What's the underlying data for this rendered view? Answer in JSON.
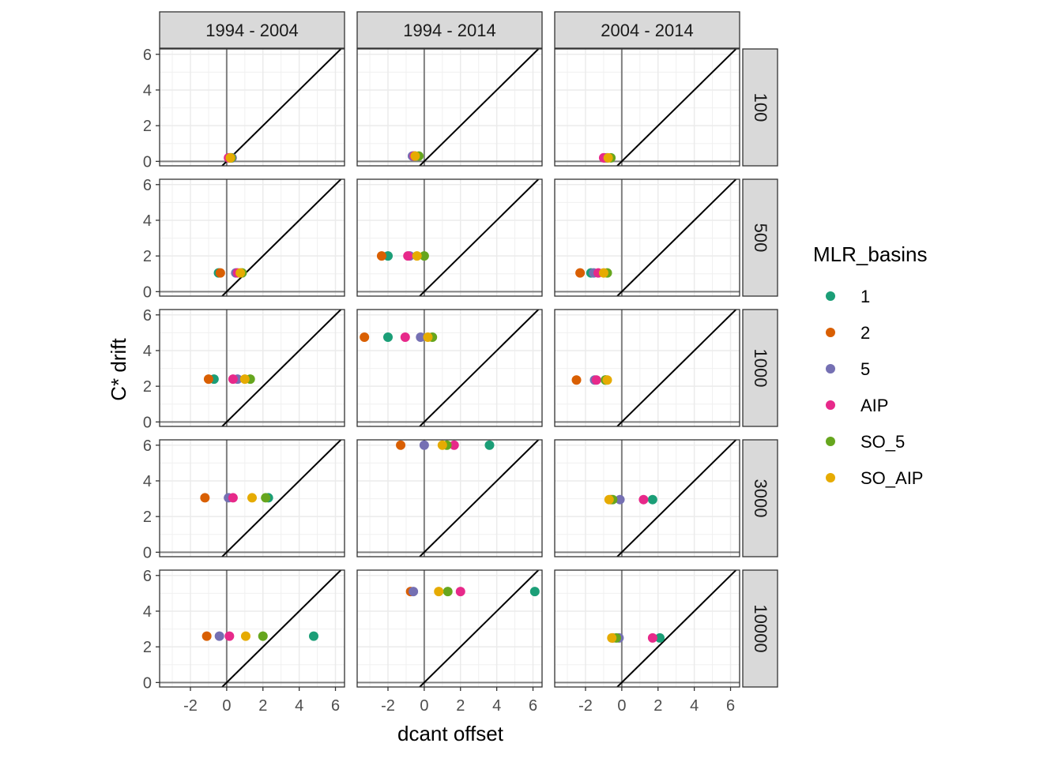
{
  "chart_data": {
    "type": "scatter",
    "xlabel": "dcant offset",
    "ylabel": "C* drift",
    "xlim": [
      -3.7,
      6.5
    ],
    "ylim": [
      -0.25,
      6.3
    ],
    "x_ticks": [
      -2,
      0,
      2,
      4,
      6
    ],
    "y_ticks": [
      0,
      2,
      4,
      6
    ],
    "x_tick_labels": [
      "-2",
      "0",
      "2",
      "4",
      "6"
    ],
    "y_tick_labels": [
      "0",
      "2",
      "4",
      "6"
    ],
    "col_facets": [
      "1994 - 2004",
      "1994 - 2014",
      "2004 - 2014"
    ],
    "row_facets": [
      "100",
      "500",
      "1000",
      "3000",
      "10000"
    ],
    "reference_lines": [
      "x = 0",
      "y = 0",
      "y = x"
    ],
    "grid": true,
    "legend": {
      "title": "MLR_basins",
      "position": "right",
      "entries": [
        {
          "label": "1",
          "color": "#1B9E77"
        },
        {
          "label": "2",
          "color": "#D95F02"
        },
        {
          "label": "5",
          "color": "#7570B3"
        },
        {
          "label": "AIP",
          "color": "#E7298A"
        },
        {
          "label": "SO_5",
          "color": "#66A61E"
        },
        {
          "label": "SO_AIP",
          "color": "#E6AB02"
        }
      ]
    },
    "series": [
      {
        "name": "1",
        "color": "#1B9E77",
        "points": [
          {
            "row": "100",
            "col": "1994 - 2004",
            "x": 0.2,
            "y": 0.2
          },
          {
            "row": "100",
            "col": "1994 - 2014",
            "x": -0.5,
            "y": 0.3
          },
          {
            "row": "100",
            "col": "2004 - 2014",
            "x": -0.8,
            "y": 0.2
          },
          {
            "row": "500",
            "col": "1994 - 2004",
            "x": -0.45,
            "y": 1.05
          },
          {
            "row": "500",
            "col": "1994 - 2014",
            "x": -2.0,
            "y": 2.0
          },
          {
            "row": "500",
            "col": "2004 - 2014",
            "x": -1.7,
            "y": 1.05
          },
          {
            "row": "1000",
            "col": "1994 - 2004",
            "x": -0.7,
            "y": 2.4
          },
          {
            "row": "1000",
            "col": "1994 - 2014",
            "x": -2.0,
            "y": 4.75
          },
          {
            "row": "1000",
            "col": "2004 - 2014",
            "x": -0.9,
            "y": 2.35
          },
          {
            "row": "3000",
            "col": "1994 - 2004",
            "x": 2.3,
            "y": 3.05
          },
          {
            "row": "3000",
            "col": "1994 - 2014",
            "x": 3.6,
            "y": 6.0
          },
          {
            "row": "3000",
            "col": "2004 - 2014",
            "x": 1.7,
            "y": 2.95
          },
          {
            "row": "10000",
            "col": "1994 - 2004",
            "x": 4.8,
            "y": 2.6
          },
          {
            "row": "10000",
            "col": "1994 - 2014",
            "x": 6.1,
            "y": 5.1
          },
          {
            "row": "10000",
            "col": "2004 - 2014",
            "x": 2.1,
            "y": 2.5
          }
        ]
      },
      {
        "name": "2",
        "color": "#D95F02",
        "points": [
          {
            "row": "100",
            "col": "1994 - 2004",
            "x": 0.15,
            "y": 0.2
          },
          {
            "row": "100",
            "col": "1994 - 2014",
            "x": -0.6,
            "y": 0.3
          },
          {
            "row": "100",
            "col": "2004 - 2014",
            "x": -0.95,
            "y": 0.2
          },
          {
            "row": "500",
            "col": "1994 - 2004",
            "x": -0.35,
            "y": 1.05
          },
          {
            "row": "500",
            "col": "1994 - 2014",
            "x": -2.35,
            "y": 2.0
          },
          {
            "row": "500",
            "col": "2004 - 2014",
            "x": -2.3,
            "y": 1.05
          },
          {
            "row": "1000",
            "col": "1994 - 2004",
            "x": -1.0,
            "y": 2.4
          },
          {
            "row": "1000",
            "col": "1994 - 2014",
            "x": -3.3,
            "y": 4.75
          },
          {
            "row": "1000",
            "col": "2004 - 2014",
            "x": -2.5,
            "y": 2.35
          },
          {
            "row": "3000",
            "col": "1994 - 2004",
            "x": -1.2,
            "y": 3.05
          },
          {
            "row": "3000",
            "col": "1994 - 2014",
            "x": -1.3,
            "y": 6.0
          },
          {
            "row": "3000",
            "col": "2004 - 2014",
            "x": -0.6,
            "y": 2.95
          },
          {
            "row": "10000",
            "col": "1994 - 2004",
            "x": -1.1,
            "y": 2.6
          },
          {
            "row": "10000",
            "col": "1994 - 2014",
            "x": -0.75,
            "y": 5.1
          },
          {
            "row": "10000",
            "col": "2004 - 2014",
            "x": -0.5,
            "y": 2.5
          }
        ]
      },
      {
        "name": "5",
        "color": "#7570B3",
        "points": [
          {
            "row": "100",
            "col": "1994 - 2004",
            "x": 0.3,
            "y": 0.2
          },
          {
            "row": "100",
            "col": "1994 - 2014",
            "x": -0.65,
            "y": 0.3
          },
          {
            "row": "100",
            "col": "2004 - 2014",
            "x": -0.85,
            "y": 0.2
          },
          {
            "row": "500",
            "col": "1994 - 2004",
            "x": 0.5,
            "y": 1.05
          },
          {
            "row": "500",
            "col": "1994 - 2014",
            "x": -0.8,
            "y": 2.0
          },
          {
            "row": "500",
            "col": "2004 - 2014",
            "x": -1.55,
            "y": 1.05
          },
          {
            "row": "1000",
            "col": "1994 - 2004",
            "x": 0.6,
            "y": 2.4
          },
          {
            "row": "1000",
            "col": "1994 - 2014",
            "x": -0.2,
            "y": 4.75
          },
          {
            "row": "1000",
            "col": "2004 - 2014",
            "x": -1.5,
            "y": 2.35
          },
          {
            "row": "3000",
            "col": "1994 - 2004",
            "x": 0.1,
            "y": 3.05
          },
          {
            "row": "3000",
            "col": "1994 - 2014",
            "x": 0.0,
            "y": 6.0
          },
          {
            "row": "3000",
            "col": "2004 - 2014",
            "x": -0.1,
            "y": 2.95
          },
          {
            "row": "10000",
            "col": "1994 - 2004",
            "x": -0.4,
            "y": 2.6
          },
          {
            "row": "10000",
            "col": "1994 - 2014",
            "x": -0.6,
            "y": 5.1
          },
          {
            "row": "10000",
            "col": "2004 - 2014",
            "x": -0.15,
            "y": 2.5
          }
        ]
      },
      {
        "name": "AIP",
        "color": "#E7298A",
        "points": [
          {
            "row": "100",
            "col": "1994 - 2004",
            "x": 0.1,
            "y": 0.2
          },
          {
            "row": "100",
            "col": "1994 - 2014",
            "x": -0.55,
            "y": 0.3
          },
          {
            "row": "100",
            "col": "2004 - 2014",
            "x": -1.0,
            "y": 0.2
          },
          {
            "row": "500",
            "col": "1994 - 2004",
            "x": 0.6,
            "y": 1.05
          },
          {
            "row": "500",
            "col": "1994 - 2014",
            "x": -0.9,
            "y": 2.0
          },
          {
            "row": "500",
            "col": "2004 - 2014",
            "x": -1.3,
            "y": 1.05
          },
          {
            "row": "1000",
            "col": "1994 - 2004",
            "x": 0.35,
            "y": 2.4
          },
          {
            "row": "1000",
            "col": "1994 - 2014",
            "x": -1.05,
            "y": 4.75
          },
          {
            "row": "1000",
            "col": "2004 - 2014",
            "x": -1.4,
            "y": 2.35
          },
          {
            "row": "3000",
            "col": "1994 - 2004",
            "x": 0.35,
            "y": 3.05
          },
          {
            "row": "3000",
            "col": "1994 - 2014",
            "x": 1.65,
            "y": 6.0
          },
          {
            "row": "3000",
            "col": "2004 - 2014",
            "x": 1.2,
            "y": 2.95
          },
          {
            "row": "10000",
            "col": "1994 - 2004",
            "x": 0.15,
            "y": 2.6
          },
          {
            "row": "10000",
            "col": "1994 - 2014",
            "x": 2.0,
            "y": 5.1
          },
          {
            "row": "10000",
            "col": "2004 - 2014",
            "x": 1.7,
            "y": 2.5
          }
        ]
      },
      {
        "name": "SO_5",
        "color": "#66A61E",
        "points": [
          {
            "row": "100",
            "col": "1994 - 2004",
            "x": 0.25,
            "y": 0.2
          },
          {
            "row": "100",
            "col": "1994 - 2014",
            "x": -0.3,
            "y": 0.3
          },
          {
            "row": "100",
            "col": "2004 - 2014",
            "x": -0.6,
            "y": 0.2
          },
          {
            "row": "500",
            "col": "1994 - 2004",
            "x": 0.85,
            "y": 1.05
          },
          {
            "row": "500",
            "col": "1994 - 2014",
            "x": 0.0,
            "y": 2.0
          },
          {
            "row": "500",
            "col": "2004 - 2014",
            "x": -0.8,
            "y": 1.05
          },
          {
            "row": "1000",
            "col": "1994 - 2004",
            "x": 1.3,
            "y": 2.4
          },
          {
            "row": "1000",
            "col": "1994 - 2014",
            "x": 0.45,
            "y": 4.75
          },
          {
            "row": "1000",
            "col": "2004 - 2014",
            "x": -0.9,
            "y": 2.35
          },
          {
            "row": "3000",
            "col": "1994 - 2004",
            "x": 2.15,
            "y": 3.05
          },
          {
            "row": "3000",
            "col": "1994 - 2014",
            "x": 1.25,
            "y": 6.0
          },
          {
            "row": "3000",
            "col": "2004 - 2014",
            "x": -0.5,
            "y": 2.95
          },
          {
            "row": "10000",
            "col": "1994 - 2004",
            "x": 2.0,
            "y": 2.6
          },
          {
            "row": "10000",
            "col": "1994 - 2014",
            "x": 1.3,
            "y": 5.1
          },
          {
            "row": "10000",
            "col": "2004 - 2014",
            "x": -0.3,
            "y": 2.5
          }
        ]
      },
      {
        "name": "SO_AIP",
        "color": "#E6AB02",
        "points": [
          {
            "row": "100",
            "col": "1994 - 2004",
            "x": 0.2,
            "y": 0.2
          },
          {
            "row": "100",
            "col": "1994 - 2014",
            "x": -0.5,
            "y": 0.3
          },
          {
            "row": "100",
            "col": "2004 - 2014",
            "x": -0.75,
            "y": 0.2
          },
          {
            "row": "500",
            "col": "1994 - 2004",
            "x": 0.75,
            "y": 1.05
          },
          {
            "row": "500",
            "col": "1994 - 2014",
            "x": -0.4,
            "y": 2.0
          },
          {
            "row": "500",
            "col": "2004 - 2014",
            "x": -1.0,
            "y": 1.05
          },
          {
            "row": "1000",
            "col": "1994 - 2004",
            "x": 1.0,
            "y": 2.4
          },
          {
            "row": "1000",
            "col": "1994 - 2014",
            "x": 0.2,
            "y": 4.75
          },
          {
            "row": "1000",
            "col": "2004 - 2014",
            "x": -0.8,
            "y": 2.35
          },
          {
            "row": "3000",
            "col": "1994 - 2004",
            "x": 1.4,
            "y": 3.05
          },
          {
            "row": "3000",
            "col": "1994 - 2014",
            "x": 1.0,
            "y": 6.0
          },
          {
            "row": "3000",
            "col": "2004 - 2014",
            "x": -0.7,
            "y": 2.95
          },
          {
            "row": "10000",
            "col": "1994 - 2004",
            "x": 1.05,
            "y": 2.6
          },
          {
            "row": "10000",
            "col": "1994 - 2014",
            "x": 0.8,
            "y": 5.1
          },
          {
            "row": "10000",
            "col": "2004 - 2014",
            "x": -0.55,
            "y": 2.5
          }
        ]
      }
    ]
  }
}
